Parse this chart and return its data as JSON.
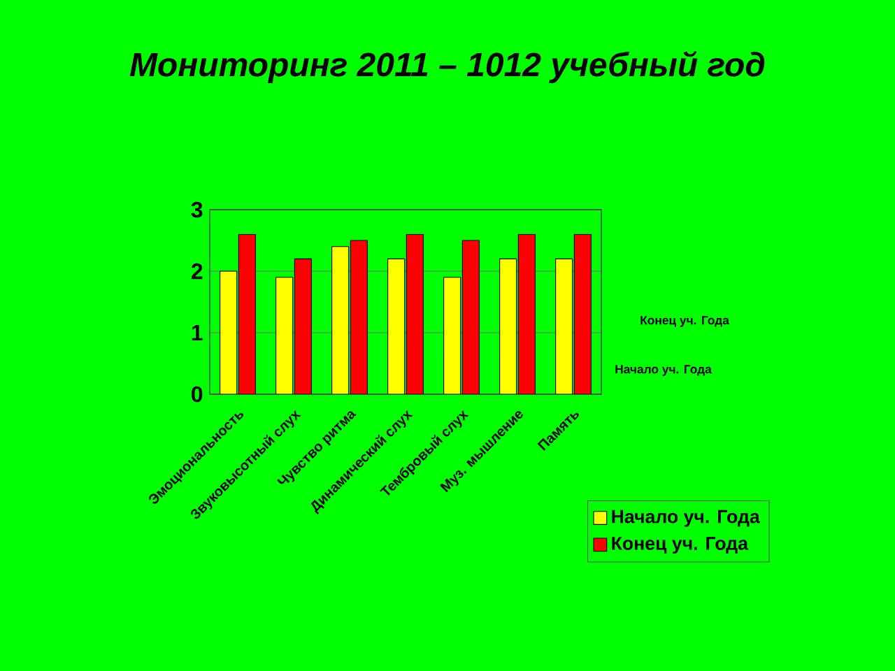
{
  "chart_data": {
    "type": "bar",
    "title": "Мониторинг 2011 – 1012 учебный год",
    "categories": [
      "Эмоциональность",
      "Звуковысотный слух",
      "Чувство ритма",
      "Динамический слух",
      "Тембровый слух",
      "Муз. мышление",
      "Память"
    ],
    "series": [
      {
        "name": "Начало уч. Года",
        "color": "#ffff00",
        "values": [
          2.0,
          1.9,
          2.4,
          2.2,
          1.9,
          2.2,
          2.2
        ]
      },
      {
        "name": "Конец уч. Года",
        "color": "#ff0000",
        "values": [
          2.6,
          2.2,
          2.5,
          2.6,
          2.5,
          2.6,
          2.6
        ]
      }
    ],
    "ylim": [
      0,
      3
    ],
    "yticks": [
      0,
      1,
      2,
      3
    ],
    "grid": "y",
    "legend": "bottom right"
  }
}
